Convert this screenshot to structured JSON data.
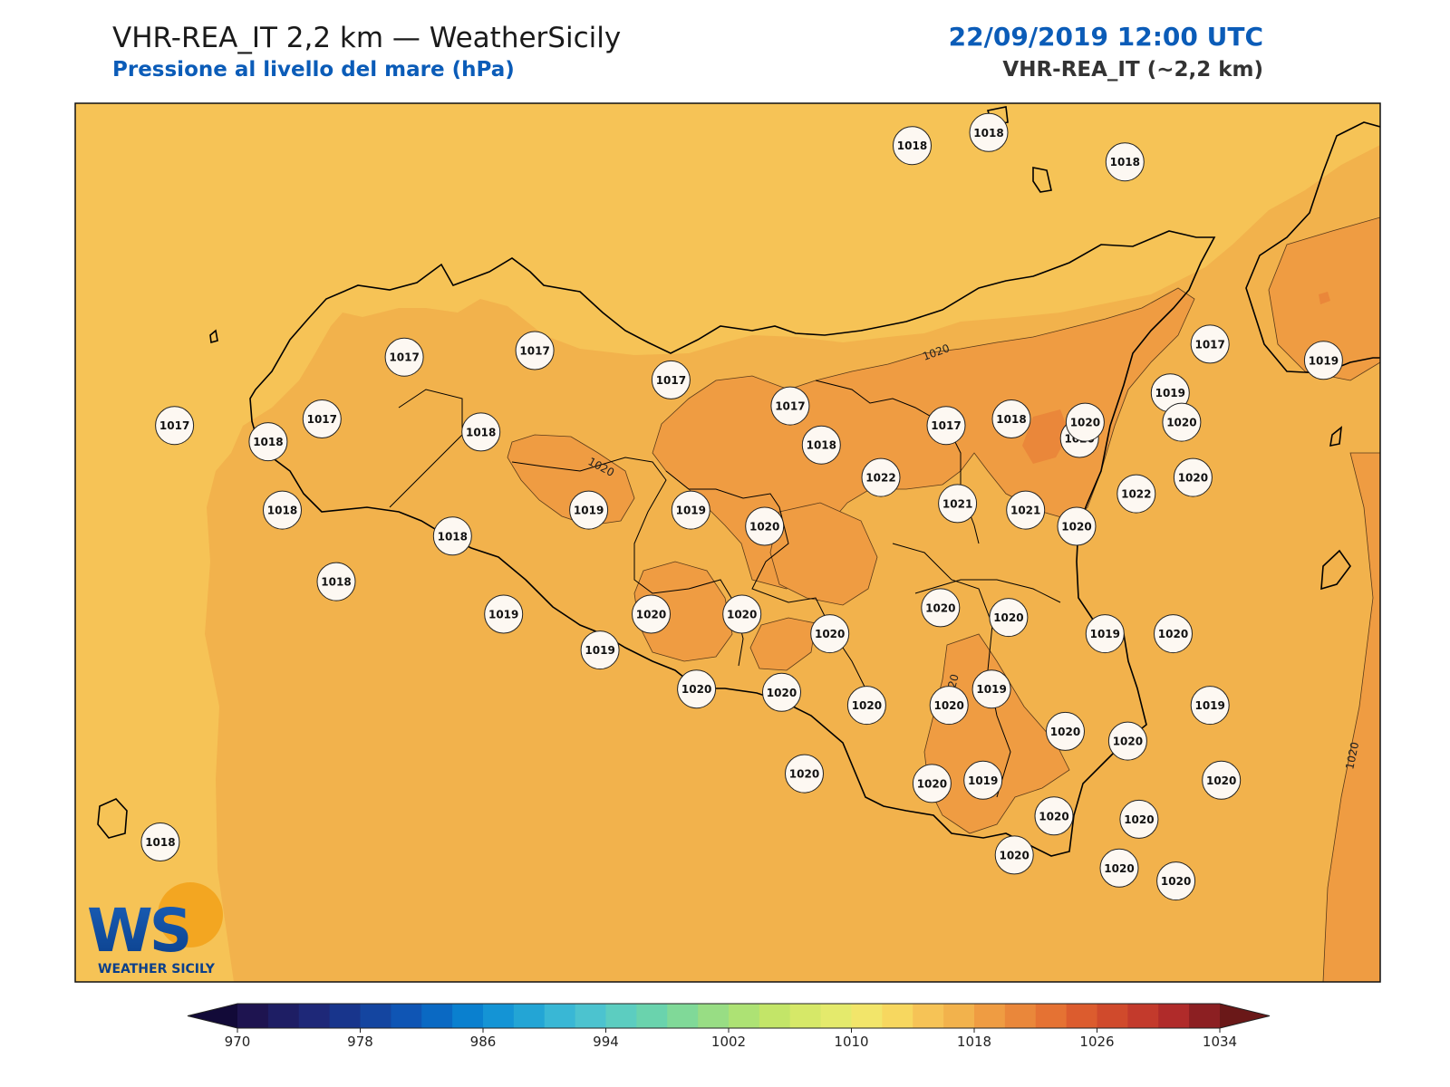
{
  "header": {
    "title": "VHR-REA_IT 2,2 km — WeatherSicily",
    "subtitle": "Pressione al livello del mare (hPa)",
    "datetime": "22/09/2019 12:00 UTC",
    "model": "VHR-REA_IT (~2,2 km)"
  },
  "logo": {
    "letters": "WS",
    "text": "WEATHER SICILY"
  },
  "colors": {
    "sea_light": "#f6c356",
    "field_1018_1020": "#f2b24c",
    "field_1020_1022": "#ef9c42",
    "field_1022_plus": "#ea873a",
    "border": "#000000"
  },
  "contour_labels": [
    "1020",
    "1020",
    "1020",
    "1020"
  ],
  "stations": [
    {
      "v": "1018",
      "lon": 14.95,
      "lat": 38.92
    },
    {
      "v": "1018",
      "lon": 15.22,
      "lat": 38.96
    },
    {
      "v": "1018",
      "lon": 15.7,
      "lat": 38.87
    },
    {
      "v": "1017",
      "lon": 16.0,
      "lat": 38.31
    },
    {
      "v": "1019",
      "lon": 16.4,
      "lat": 38.26
    },
    {
      "v": "1017",
      "lon": 13.16,
      "lat": 38.27
    },
    {
      "v": "1017",
      "lon": 13.62,
      "lat": 38.29
    },
    {
      "v": "1017",
      "lon": 14.1,
      "lat": 38.2
    },
    {
      "v": "1017",
      "lon": 14.52,
      "lat": 38.12
    },
    {
      "v": "1017",
      "lon": 12.35,
      "lat": 38.06
    },
    {
      "v": "1017",
      "lon": 12.87,
      "lat": 38.08
    },
    {
      "v": "1018",
      "lon": 13.43,
      "lat": 38.04
    },
    {
      "v": "1018",
      "lon": 12.68,
      "lat": 38.01
    },
    {
      "v": "1018",
      "lon": 14.63,
      "lat": 38.0
    },
    {
      "v": "1017",
      "lon": 15.07,
      "lat": 38.06
    },
    {
      "v": "1018",
      "lon": 15.3,
      "lat": 38.08
    },
    {
      "v": "1019",
      "lon": 15.86,
      "lat": 38.16
    },
    {
      "v": "1020",
      "lon": 15.54,
      "lat": 38.02
    },
    {
      "v": "1020",
      "lon": 15.56,
      "lat": 38.07
    },
    {
      "v": "1020",
      "lon": 15.9,
      "lat": 38.07
    },
    {
      "v": "1018",
      "lon": 12.73,
      "lat": 37.8
    },
    {
      "v": "1018",
      "lon": 13.33,
      "lat": 37.72
    },
    {
      "v": "1018",
      "lon": 12.92,
      "lat": 37.58
    },
    {
      "v": "1022",
      "lon": 14.84,
      "lat": 37.9
    },
    {
      "v": "1021",
      "lon": 15.11,
      "lat": 37.82
    },
    {
      "v": "1021",
      "lon": 15.35,
      "lat": 37.8
    },
    {
      "v": "1022",
      "lon": 15.74,
      "lat": 37.85
    },
    {
      "v": "1020",
      "lon": 15.94,
      "lat": 37.9
    },
    {
      "v": "1019",
      "lon": 13.81,
      "lat": 37.8
    },
    {
      "v": "1019",
      "lon": 14.17,
      "lat": 37.8
    },
    {
      "v": "1020",
      "lon": 14.43,
      "lat": 37.75
    },
    {
      "v": "1020",
      "lon": 15.53,
      "lat": 37.75
    },
    {
      "v": "1019",
      "lon": 13.51,
      "lat": 37.48
    },
    {
      "v": "1020",
      "lon": 14.03,
      "lat": 37.48
    },
    {
      "v": "1020",
      "lon": 14.35,
      "lat": 37.48
    },
    {
      "v": "1020",
      "lon": 15.05,
      "lat": 37.5
    },
    {
      "v": "1020",
      "lon": 15.29,
      "lat": 37.47
    },
    {
      "v": "1019",
      "lon": 15.63,
      "lat": 37.42
    },
    {
      "v": "1020",
      "lon": 15.87,
      "lat": 37.42
    },
    {
      "v": "1019",
      "lon": 13.85,
      "lat": 37.37
    },
    {
      "v": "1020",
      "lon": 14.66,
      "lat": 37.42
    },
    {
      "v": "1019",
      "lon": 15.23,
      "lat": 37.25
    },
    {
      "v": "1020",
      "lon": 14.19,
      "lat": 37.25
    },
    {
      "v": "1020",
      "lon": 14.49,
      "lat": 37.24
    },
    {
      "v": "1020",
      "lon": 14.79,
      "lat": 37.2
    },
    {
      "v": "1020",
      "lon": 15.08,
      "lat": 37.2
    },
    {
      "v": "1019",
      "lon": 16.0,
      "lat": 37.2
    },
    {
      "v": "1020",
      "lon": 15.49,
      "lat": 37.12
    },
    {
      "v": "1020",
      "lon": 15.71,
      "lat": 37.09
    },
    {
      "v": "1020",
      "lon": 14.57,
      "lat": 36.99
    },
    {
      "v": "1020",
      "lon": 15.02,
      "lat": 36.96
    },
    {
      "v": "1019",
      "lon": 15.2,
      "lat": 36.97
    },
    {
      "v": "1020",
      "lon": 16.04,
      "lat": 36.97
    },
    {
      "v": "1020",
      "lon": 15.45,
      "lat": 36.86
    },
    {
      "v": "1020",
      "lon": 15.75,
      "lat": 36.85
    },
    {
      "v": "1020",
      "lon": 15.31,
      "lat": 36.74
    },
    {
      "v": "1020",
      "lon": 15.68,
      "lat": 36.7
    },
    {
      "v": "1020",
      "lon": 15.88,
      "lat": 36.66
    },
    {
      "v": "1018",
      "lon": 12.3,
      "lat": 36.78
    }
  ],
  "colorbar": {
    "tick_labels": [
      "970",
      "978",
      "986",
      "994",
      "1002",
      "1010",
      "1018",
      "1026",
      "1034"
    ],
    "levels_min": 970,
    "levels_max": 1034,
    "step": 2,
    "colors": [
      "#1e1450",
      "#1e1e64",
      "#1e2878",
      "#18358c",
      "#1445a0",
      "#0f55b4",
      "#0a69c3",
      "#0a80cf",
      "#1494d5",
      "#23a5d5",
      "#39b7d5",
      "#4cc3cf",
      "#5ccdc0",
      "#6ad3ad",
      "#80d998",
      "#98dd84",
      "#ade274",
      "#c3e568",
      "#d6e868",
      "#e4ea6c",
      "#f2e56a",
      "#f7d75f",
      "#f6c356",
      "#f2b24c",
      "#ef9c42",
      "#ea873a",
      "#e57233",
      "#dc5c2e",
      "#d04a2c",
      "#c33a2c",
      "#b02b2a",
      "#8c1f22"
    ],
    "extend_low": "#120a38",
    "extend_high": "#6a1818"
  }
}
